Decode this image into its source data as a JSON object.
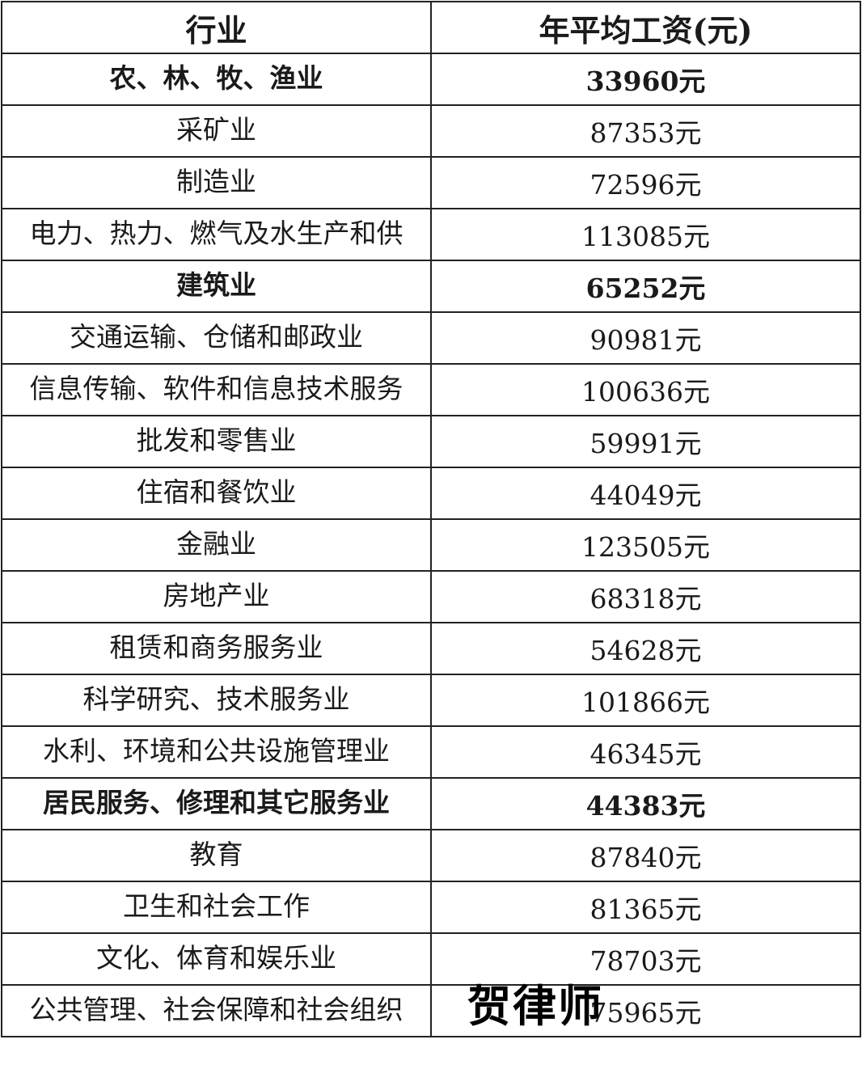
{
  "table": {
    "headers": [
      "行业",
      "年平均工资(元)"
    ],
    "rows": [
      {
        "industry": "农、林、牧、渔业",
        "salary": "33960元",
        "bold": true
      },
      {
        "industry": "采矿业",
        "salary": "87353元",
        "bold": false
      },
      {
        "industry": "制造业",
        "salary": "72596元",
        "bold": false
      },
      {
        "industry": "电力、热力、燃气及水生产和供应业",
        "salary": "113085元",
        "bold": false
      },
      {
        "industry": "建筑业",
        "salary": "65252元",
        "bold": true
      },
      {
        "industry": "交通运输、仓储和邮政业",
        "salary": "90981元",
        "bold": false
      },
      {
        "industry": "信息传输、软件和信息技术服务业",
        "salary": "100636元",
        "bold": false
      },
      {
        "industry": "批发和零售业",
        "salary": "59991元",
        "bold": false
      },
      {
        "industry": "住宿和餐饮业",
        "salary": "44049元",
        "bold": false
      },
      {
        "industry": "金融业",
        "salary": "123505元",
        "bold": false
      },
      {
        "industry": "房地产业",
        "salary": "68318元",
        "bold": false
      },
      {
        "industry": "租赁和商务服务业",
        "salary": "54628元",
        "bold": false
      },
      {
        "industry": "科学研究、技术服务业",
        "salary": "101866元",
        "bold": false
      },
      {
        "industry": "水利、环境和公共设施管理业",
        "salary": "46345元",
        "bold": false
      },
      {
        "industry": "居民服务、修理和其它服务业",
        "salary": "44383元",
        "bold": true
      },
      {
        "industry": "教育",
        "salary": "87840元",
        "bold": false
      },
      {
        "industry": "卫生和社会工作",
        "salary": "81365元",
        "bold": false
      },
      {
        "industry": "文化、体育和娱乐业",
        "salary": "78703元",
        "bold": false
      },
      {
        "industry": "公共管理、社会保障和社会组织",
        "salary": "75965元",
        "bold": false
      }
    ]
  },
  "watermark": "贺律师"
}
